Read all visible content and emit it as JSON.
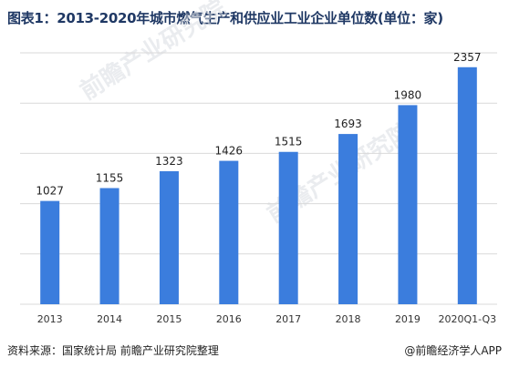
{
  "title": "图表1：2013-2020年城市燃气生产和供应业工业企业单位数(单位：家)",
  "source": "资料来源：国家统计局 前瞻产业研究院整理",
  "credit": "@前瞻经济学人APP",
  "watermark": "前瞻产业研究院",
  "colors": {
    "bar": "#3b7ddd",
    "grid": "#d9d9d9",
    "title": "#1f3864"
  },
  "chart_data": {
    "type": "bar",
    "categories": [
      "2013",
      "2014",
      "2015",
      "2016",
      "2017",
      "2018",
      "2019",
      "2020Q1-Q3"
    ],
    "values": [
      1027,
      1155,
      1323,
      1426,
      1515,
      1693,
      1980,
      2357
    ],
    "ylim": [
      0,
      2500
    ],
    "grid": true
  }
}
